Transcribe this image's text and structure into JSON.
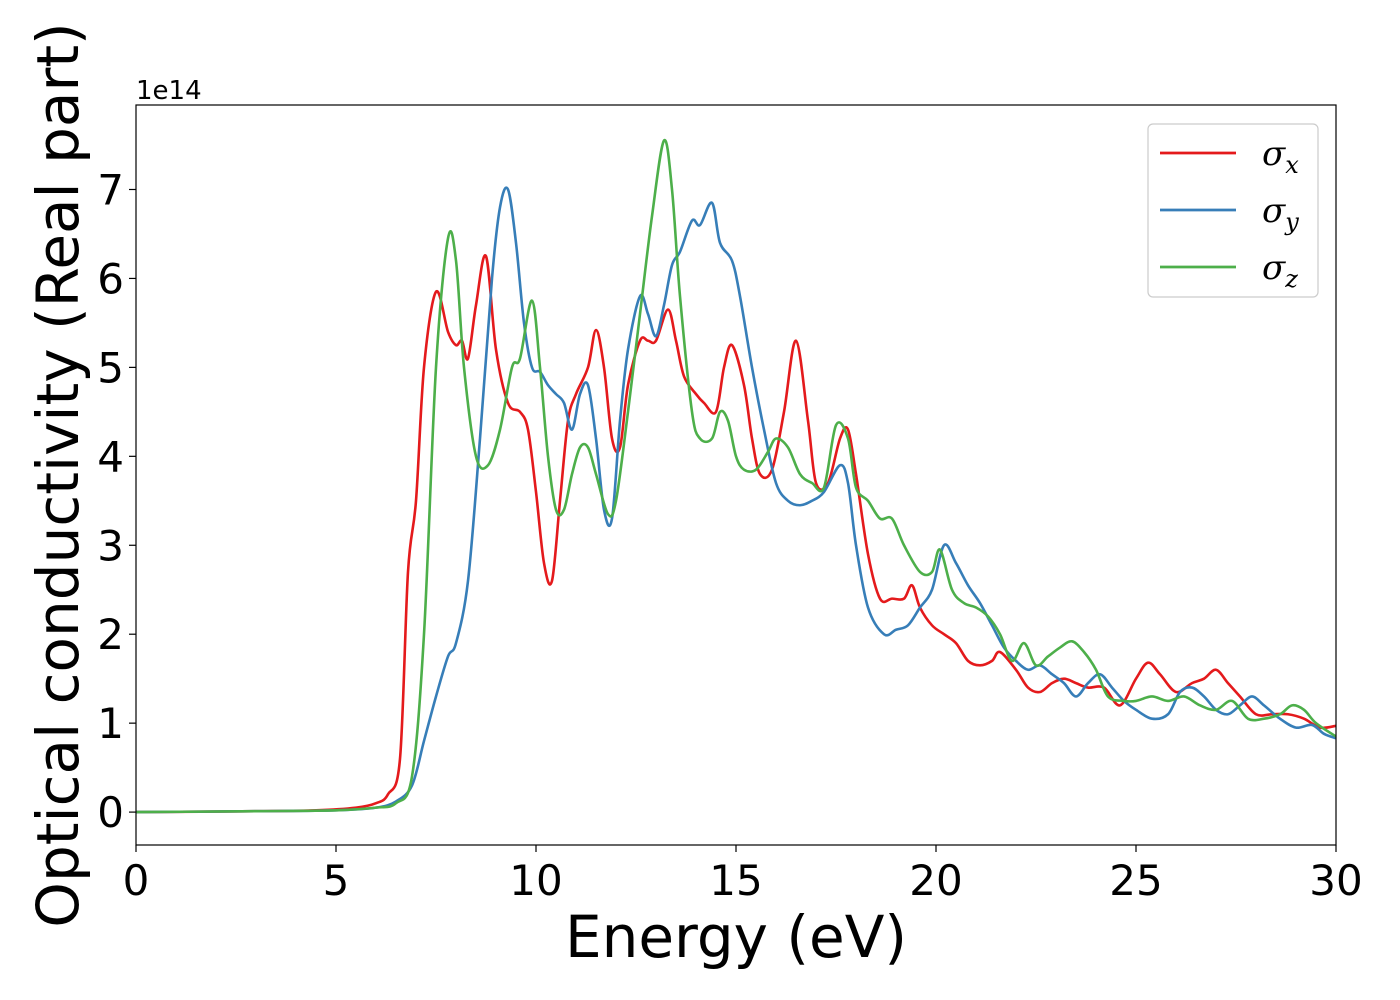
{
  "chart_data": {
    "type": "line",
    "title": "",
    "xlabel": "Energy (eV)",
    "ylabel": "Optical conductivity (Real part)",
    "y_offset_text": "1e14",
    "xlim": [
      0,
      30
    ],
    "ylim": [
      -0.37,
      7.95
    ],
    "x_ticks": [
      0,
      5,
      10,
      15,
      20,
      25,
      30
    ],
    "y_ticks": [
      0,
      1,
      2,
      3,
      4,
      5,
      6,
      7
    ],
    "grid": false,
    "legend_position": "top-right",
    "series": [
      {
        "name": "σx",
        "legend_symbol": "σ",
        "legend_subscript": "x",
        "color": "#e41a1c",
        "x": [
          0,
          3,
          4.5,
          5.5,
          6.0,
          6.3,
          6.6,
          6.8,
          7.0,
          7.2,
          7.5,
          7.8,
          8.0,
          8.15,
          8.3,
          8.5,
          8.75,
          9.0,
          9.3,
          9.6,
          9.8,
          10.0,
          10.2,
          10.4,
          10.6,
          10.8,
          11.0,
          11.3,
          11.5,
          11.7,
          11.9,
          12.1,
          12.3,
          12.6,
          12.8,
          13.0,
          13.3,
          13.5,
          13.7,
          14.0,
          14.2,
          14.5,
          14.7,
          14.9,
          15.2,
          15.4,
          15.6,
          15.9,
          16.2,
          16.5,
          16.8,
          17.0,
          17.3,
          17.6,
          17.8,
          18.0,
          18.3,
          18.6,
          18.9,
          19.2,
          19.4,
          19.6,
          19.9,
          20.2,
          20.5,
          20.8,
          21.1,
          21.4,
          21.6,
          22.0,
          22.3,
          22.6,
          22.9,
          23.2,
          23.5,
          23.8,
          24.2,
          24.6,
          25.0,
          25.3,
          25.6,
          26.0,
          26.4,
          26.7,
          27.0,
          27.3,
          27.6,
          28.0,
          28.4,
          28.8,
          29.2,
          29.6,
          30.0
        ],
        "values": [
          0.0,
          0.01,
          0.02,
          0.05,
          0.1,
          0.2,
          0.6,
          2.7,
          3.5,
          5.0,
          5.85,
          5.4,
          5.25,
          5.3,
          5.1,
          5.7,
          6.25,
          5.2,
          4.6,
          4.5,
          4.3,
          3.6,
          2.8,
          2.6,
          3.5,
          4.4,
          4.7,
          5.0,
          5.42,
          5.0,
          4.2,
          4.1,
          4.8,
          5.3,
          5.3,
          5.3,
          5.65,
          5.3,
          4.9,
          4.7,
          4.6,
          4.5,
          5.0,
          5.25,
          4.8,
          4.2,
          3.8,
          3.85,
          4.5,
          5.3,
          4.4,
          3.7,
          3.7,
          4.2,
          4.3,
          3.8,
          2.9,
          2.4,
          2.4,
          2.4,
          2.55,
          2.3,
          2.1,
          2.0,
          1.9,
          1.7,
          1.65,
          1.7,
          1.8,
          1.6,
          1.4,
          1.35,
          1.45,
          1.5,
          1.45,
          1.4,
          1.4,
          1.2,
          1.5,
          1.68,
          1.55,
          1.35,
          1.45,
          1.5,
          1.6,
          1.45,
          1.3,
          1.1,
          1.1,
          1.1,
          1.05,
          0.95,
          0.97
        ]
      },
      {
        "name": "σy",
        "legend_symbol": "σ",
        "legend_subscript": "y",
        "color": "#377eb8",
        "x": [
          0,
          3,
          5,
          6.0,
          6.5,
          6.9,
          7.2,
          7.5,
          7.8,
          8.0,
          8.3,
          8.6,
          8.9,
          9.1,
          9.3,
          9.5,
          9.7,
          9.9,
          10.1,
          10.3,
          10.5,
          10.7,
          10.9,
          11.1,
          11.3,
          11.5,
          11.7,
          11.9,
          12.1,
          12.3,
          12.6,
          12.8,
          13.0,
          13.2,
          13.4,
          13.6,
          13.9,
          14.1,
          14.4,
          14.6,
          14.9,
          15.1,
          15.4,
          15.7,
          16.0,
          16.3,
          16.6,
          16.9,
          17.2,
          17.6,
          17.8,
          18.0,
          18.3,
          18.7,
          19.0,
          19.3,
          19.6,
          19.9,
          20.2,
          20.5,
          20.8,
          21.1,
          21.4,
          21.7,
          22.0,
          22.3,
          22.6,
          22.9,
          23.2,
          23.5,
          23.8,
          24.1,
          24.4,
          24.7,
          25.0,
          25.4,
          25.8,
          26.1,
          26.4,
          26.7,
          27.0,
          27.3,
          27.6,
          27.9,
          28.2,
          28.6,
          29.0,
          29.4,
          29.7,
          30.0
        ],
        "values": [
          0.0,
          0.01,
          0.02,
          0.05,
          0.12,
          0.3,
          0.8,
          1.3,
          1.75,
          1.9,
          2.6,
          4.2,
          6.0,
          6.8,
          7.0,
          6.4,
          5.5,
          5.0,
          4.95,
          4.8,
          4.7,
          4.6,
          4.3,
          4.7,
          4.8,
          4.2,
          3.4,
          3.3,
          4.4,
          5.2,
          5.8,
          5.6,
          5.35,
          5.7,
          6.15,
          6.3,
          6.65,
          6.6,
          6.85,
          6.4,
          6.2,
          5.8,
          5.0,
          4.3,
          3.7,
          3.5,
          3.45,
          3.5,
          3.6,
          3.9,
          3.7,
          3.0,
          2.3,
          2.0,
          2.05,
          2.1,
          2.3,
          2.5,
          3.0,
          2.8,
          2.55,
          2.35,
          2.1,
          1.85,
          1.7,
          1.6,
          1.65,
          1.55,
          1.45,
          1.3,
          1.45,
          1.55,
          1.4,
          1.25,
          1.15,
          1.05,
          1.1,
          1.35,
          1.4,
          1.3,
          1.15,
          1.1,
          1.2,
          1.3,
          1.2,
          1.05,
          0.95,
          0.98,
          0.88,
          0.83
        ]
      },
      {
        "name": "σz",
        "legend_symbol": "σ",
        "legend_subscript": "z",
        "color": "#4daf4a",
        "x": [
          0,
          3,
          5,
          6.0,
          6.5,
          6.9,
          7.2,
          7.5,
          7.8,
          8.0,
          8.2,
          8.5,
          8.8,
          9.1,
          9.4,
          9.6,
          9.9,
          10.1,
          10.3,
          10.5,
          10.7,
          10.9,
          11.1,
          11.3,
          11.5,
          11.8,
          12.0,
          12.3,
          12.6,
          12.9,
          13.2,
          13.4,
          13.6,
          13.9,
          14.1,
          14.4,
          14.6,
          14.8,
          15.0,
          15.2,
          15.5,
          15.8,
          16.0,
          16.3,
          16.6,
          16.9,
          17.2,
          17.5,
          17.8,
          18.0,
          18.3,
          18.6,
          18.9,
          19.2,
          19.6,
          19.9,
          20.1,
          20.4,
          20.7,
          21.0,
          21.3,
          21.6,
          21.9,
          22.2,
          22.5,
          22.8,
          23.1,
          23.4,
          23.7,
          24.0,
          24.3,
          24.7,
          25.0,
          25.4,
          25.8,
          26.2,
          26.6,
          27.0,
          27.4,
          27.8,
          28.2,
          28.6,
          28.9,
          29.2,
          29.5,
          30.0
        ],
        "values": [
          0.0,
          0.01,
          0.02,
          0.05,
          0.1,
          0.4,
          2.0,
          5.0,
          6.45,
          6.2,
          5.0,
          4.0,
          3.9,
          4.3,
          5.0,
          5.1,
          5.75,
          5.0,
          4.0,
          3.4,
          3.4,
          3.8,
          4.1,
          4.1,
          3.8,
          3.35,
          3.5,
          4.5,
          5.6,
          6.7,
          7.55,
          7.0,
          5.8,
          4.5,
          4.2,
          4.2,
          4.5,
          4.4,
          4.0,
          3.85,
          3.85,
          4.05,
          4.2,
          4.1,
          3.8,
          3.7,
          3.65,
          4.35,
          4.2,
          3.65,
          3.5,
          3.3,
          3.3,
          3.0,
          2.7,
          2.7,
          2.95,
          2.5,
          2.35,
          2.3,
          2.2,
          2.0,
          1.7,
          1.9,
          1.65,
          1.75,
          1.85,
          1.92,
          1.8,
          1.6,
          1.3,
          1.25,
          1.25,
          1.3,
          1.25,
          1.3,
          1.2,
          1.15,
          1.25,
          1.05,
          1.05,
          1.1,
          1.2,
          1.15,
          1.0,
          0.85
        ]
      }
    ]
  }
}
